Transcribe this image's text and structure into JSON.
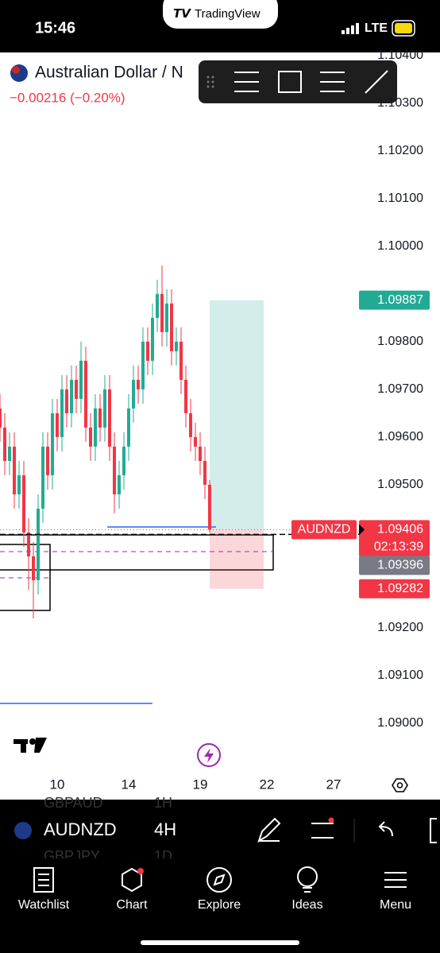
{
  "status_bar": {
    "time": "15:46",
    "app": "TradingView",
    "network": "LTE"
  },
  "header": {
    "title": "Australian Dollar / N",
    "change": "−0.00216 (−0.20%)"
  },
  "chart_data": {
    "type": "candlestick",
    "open": [
      1.0966,
      1.0962,
      1.0955,
      1.0958,
      1.0948,
      1.0952,
      1.094,
      1.0935,
      1.093,
      1.0945,
      1.0958,
      1.0952,
      1.0965,
      1.096,
      1.097,
      1.0965,
      1.0972,
      1.0968,
      1.0976,
      1.0962,
      1.0958,
      1.0966,
      1.0962,
      1.097,
      1.0958,
      1.0948,
      1.0952,
      1.0958,
      1.0966,
      1.0972,
      1.097,
      1.098,
      1.0976,
      1.0985,
      1.099,
      1.0982,
      1.0988,
      1.0978,
      1.098,
      1.0972,
      1.0965,
      1.096,
      1.0958,
      1.0955,
      1.095
    ],
    "high": [
      1.0969,
      1.0965,
      1.0961,
      1.0961,
      1.0955,
      1.0955,
      1.0943,
      1.0938,
      1.0948,
      1.0961,
      1.0961,
      1.0968,
      1.0968,
      1.0973,
      1.0973,
      1.0975,
      1.0975,
      1.098,
      1.0979,
      1.0965,
      1.0969,
      1.0969,
      1.0973,
      1.0973,
      1.0961,
      1.0955,
      1.0961,
      1.0969,
      1.0975,
      1.0975,
      1.0983,
      1.0983,
      1.0988,
      1.0993,
      1.0996,
      1.0991,
      1.0991,
      1.0983,
      1.0983,
      1.0975,
      1.0968,
      1.0963,
      1.0961,
      1.0958,
      1.0951
    ],
    "low": [
      1.0959,
      1.0952,
      1.0952,
      1.0945,
      1.0945,
      1.0937,
      1.0928,
      1.0922,
      1.0927,
      1.0942,
      1.0949,
      1.0949,
      1.0957,
      1.0957,
      1.0962,
      1.0962,
      1.0965,
      1.0965,
      1.0959,
      1.0955,
      1.0955,
      1.0959,
      1.0959,
      1.0955,
      1.0944,
      1.0945,
      1.0949,
      1.0955,
      1.0963,
      1.0967,
      1.0967,
      1.0973,
      1.0973,
      1.0982,
      1.0979,
      1.0979,
      1.0975,
      1.0975,
      1.0969,
      1.0962,
      1.0957,
      1.0955,
      1.0952,
      1.0947,
      1.094
    ],
    "close": [
      1.0962,
      1.0955,
      1.0958,
      1.0948,
      1.0952,
      1.094,
      1.0935,
      1.093,
      1.0945,
      1.0958,
      1.0952,
      1.0965,
      1.096,
      1.097,
      1.0965,
      1.0972,
      1.0968,
      1.0976,
      1.0962,
      1.0958,
      1.0966,
      1.0962,
      1.097,
      1.0958,
      1.0948,
      1.0952,
      1.0958,
      1.0966,
      1.0972,
      1.097,
      1.098,
      1.0976,
      1.0985,
      1.099,
      1.0982,
      1.0988,
      1.0978,
      1.098,
      1.0972,
      1.0965,
      1.096,
      1.0958,
      1.0955,
      1.095,
      1.09406
    ],
    "up_color": "#22ab94",
    "down_color": "#f23645",
    "ylim": [
      1.089,
      1.10413
    ],
    "yticks": [
      {
        "value": 1.104,
        "label": "1.10400"
      },
      {
        "value": 1.103,
        "label": "1.10300"
      },
      {
        "value": 1.102,
        "label": "1.10200"
      },
      {
        "value": 1.101,
        "label": "1.10100"
      },
      {
        "value": 1.1,
        "label": "1.10000"
      },
      {
        "value": 1.098,
        "label": "1.09800"
      },
      {
        "value": 1.097,
        "label": "1.09700"
      },
      {
        "value": 1.096,
        "label": "1.09600"
      },
      {
        "value": 1.095,
        "label": "1.09500"
      },
      {
        "value": 1.092,
        "label": "1.09200"
      },
      {
        "value": 1.091,
        "label": "1.09100"
      },
      {
        "value": 1.09,
        "label": "1.09000"
      }
    ],
    "xlim": [
      0,
      75
    ],
    "xticks": [
      {
        "value": 12,
        "label": "10"
      },
      {
        "value": 27,
        "label": "14"
      },
      {
        "value": 42,
        "label": "19"
      },
      {
        "value": 56,
        "label": "22"
      },
      {
        "value": 70,
        "label": "27"
      }
    ],
    "grid": false,
    "last_price": {
      "symbol": "AUDNZD",
      "value": 1.09406,
      "countdown": "02:13:39"
    },
    "line_price": 1.09396,
    "position": {
      "target": 1.09887,
      "stop": 1.09282
    }
  },
  "symbol_bar": {
    "symbol": "AUDNZD",
    "interval": "4H",
    "above": {
      "symbol": "GBPAUD",
      "interval": "1H"
    },
    "below": {
      "symbol": "GBPJPY",
      "interval": "1D"
    }
  },
  "nav": [
    "Watchlist",
    "Chart",
    "Explore",
    "Ideas",
    "Menu"
  ]
}
